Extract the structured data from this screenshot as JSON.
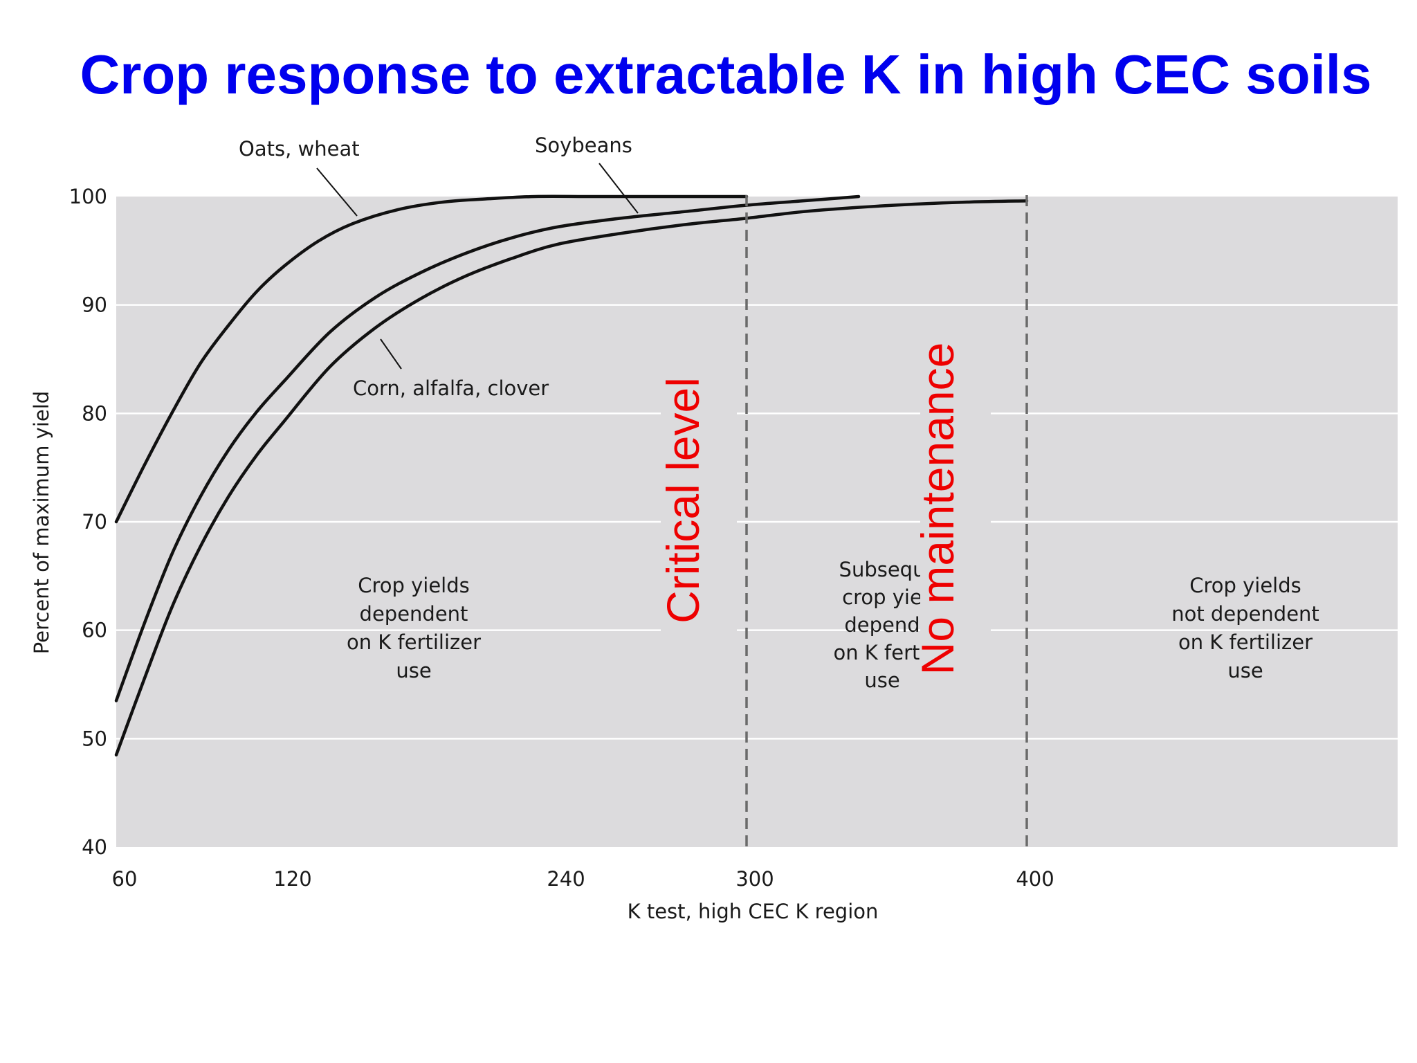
{
  "title": "Crop response to extractable K in high CEC soils",
  "chart_data": {
    "type": "line",
    "title": "Crop response to extractable K in high CEC soils",
    "xlabel": "K test, high CEC K region",
    "ylabel": "Percent of maximum yield",
    "x_ticks": [
      60,
      120,
      240,
      300,
      400
    ],
    "y_ticks": [
      40,
      50,
      60,
      70,
      80,
      90,
      100
    ],
    "ylim": [
      40,
      100
    ],
    "grid": true,
    "series": [
      {
        "name": "Oats, wheat",
        "x": [
          60,
          70,
          80,
          90,
          100,
          110,
          120,
          135,
          150,
          170,
          190,
          210,
          230,
          250,
          270,
          300
        ],
        "y": [
          70,
          75.2,
          80.1,
          84.6,
          88.1,
          91.2,
          93.6,
          95.9,
          97.5,
          98.8,
          99.5,
          99.8,
          100,
          100,
          100,
          100
        ]
      },
      {
        "name": "Soybeans",
        "x": [
          60,
          70,
          80,
          90,
          100,
          110,
          120,
          140,
          160,
          180,
          200,
          220,
          240,
          260,
          280,
          300,
          320,
          340
        ],
        "y": [
          53.5,
          60.6,
          67.1,
          72.3,
          76.6,
          80.1,
          83.0,
          87.5,
          90.7,
          93.0,
          94.8,
          96.2,
          97.2,
          98.0,
          98.6,
          99.2,
          99.6,
          100
        ]
      },
      {
        "name": "Corn, alfalfa, clover",
        "x": [
          60,
          70,
          80,
          90,
          100,
          110,
          120,
          140,
          160,
          180,
          200,
          220,
          240,
          260,
          280,
          300,
          320,
          340,
          360,
          380,
          400
        ],
        "y": [
          48.5,
          55.5,
          62.2,
          67.7,
          72.3,
          76.1,
          79.3,
          84.3,
          87.9,
          90.6,
          92.7,
          94.3,
          95.6,
          96.6,
          97.4,
          98.0,
          98.6,
          99.0,
          99.3,
          99.5,
          99.6
        ]
      }
    ],
    "thresholds": [
      {
        "x": 300,
        "label": "Critical level"
      },
      {
        "x": 400,
        "label": "No maintenance"
      }
    ],
    "annotations": [
      {
        "lines": [
          "Crop yields",
          "dependent",
          "on K fertilizer",
          "use"
        ]
      },
      {
        "lines": [
          "Subsequ",
          "crop yie",
          "depend",
          "on K fertil",
          "use"
        ]
      },
      {
        "lines": [
          "Crop yields",
          "not dependent",
          "on K fertilizer",
          "use"
        ]
      }
    ]
  }
}
